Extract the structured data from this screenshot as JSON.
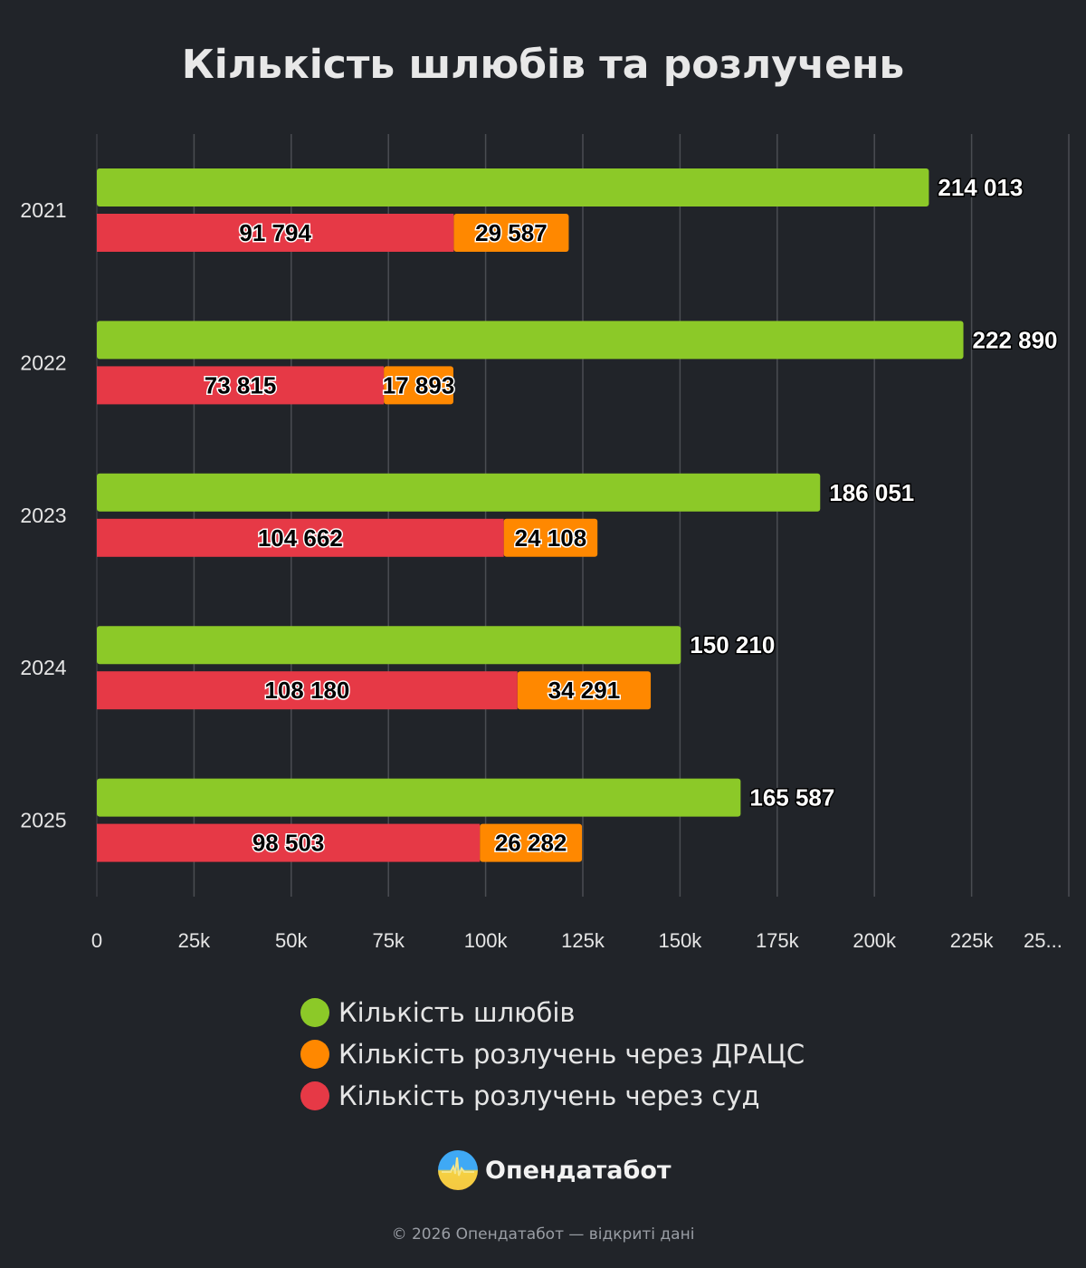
{
  "title": "Кількість шлюбів та розлучень",
  "chart_data": {
    "type": "bar",
    "orientation": "horizontal",
    "categories": [
      "2021",
      "2022",
      "2023",
      "2024",
      "2025"
    ],
    "series": [
      {
        "name": "Кількість шлюбів",
        "color": "#8cc928",
        "stack": "marriages",
        "values": [
          214013,
          222890,
          186051,
          150210,
          165587
        ],
        "labels": [
          "214 013",
          "222 890",
          "186 051",
          "150 210",
          "165 587"
        ]
      },
      {
        "name": "Кількість розлучень через суд",
        "color": "#e63946",
        "stack": "divorces",
        "values": [
          91794,
          73815,
          104662,
          108180,
          98503
        ],
        "labels": [
          "91 794",
          "73 815",
          "104 662",
          "108 180",
          "98 503"
        ]
      },
      {
        "name": "Кількість розлучень через ДРАЦС",
        "color": "#ff8800",
        "stack": "divorces",
        "values": [
          29587,
          17893,
          24108,
          34291,
          26282
        ],
        "labels": [
          "29 587",
          "17 893",
          "24 108",
          "34 291",
          "26 282"
        ]
      }
    ],
    "xlim": [
      0,
      250000
    ],
    "xticks": [
      "0",
      "25k",
      "50k",
      "75k",
      "100k",
      "125k",
      "150k",
      "175k",
      "200k",
      "225k",
      "25..."
    ],
    "grid": true,
    "legend_position": "bottom"
  },
  "legend": [
    "Кількість шлюбів",
    "Кількість розлучень через ДРАЦС",
    "Кількість розлучень через суд"
  ],
  "legend_colors": [
    "#8cc928",
    "#ff8800",
    "#e63946"
  ],
  "brand": "Опендатабот",
  "footer": "© 2026 Опендатабот — відкриті дані"
}
